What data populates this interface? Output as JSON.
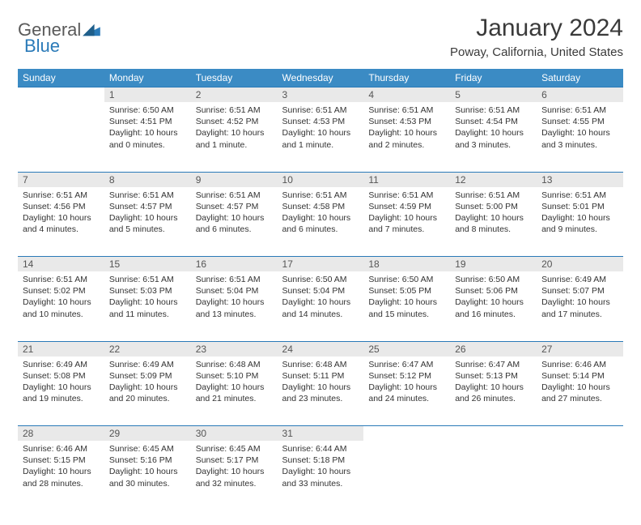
{
  "logo": {
    "general": "General",
    "blue": "Blue"
  },
  "title": "January 2024",
  "location": "Poway, California, United States",
  "colors": {
    "header_bg": "#3b8bc4",
    "header_text": "#ffffff",
    "daynum_bg": "#e9e9e9",
    "border": "#2a7ab8",
    "logo_gray": "#5a5a5a",
    "logo_blue": "#2a7ab8"
  },
  "weekdays": [
    "Sunday",
    "Monday",
    "Tuesday",
    "Wednesday",
    "Thursday",
    "Friday",
    "Saturday"
  ],
  "weeks": [
    [
      null,
      {
        "n": "1",
        "sr": "6:50 AM",
        "ss": "4:51 PM",
        "dl": "10 hours and 0 minutes."
      },
      {
        "n": "2",
        "sr": "6:51 AM",
        "ss": "4:52 PM",
        "dl": "10 hours and 1 minute."
      },
      {
        "n": "3",
        "sr": "6:51 AM",
        "ss": "4:53 PM",
        "dl": "10 hours and 1 minute."
      },
      {
        "n": "4",
        "sr": "6:51 AM",
        "ss": "4:53 PM",
        "dl": "10 hours and 2 minutes."
      },
      {
        "n": "5",
        "sr": "6:51 AM",
        "ss": "4:54 PM",
        "dl": "10 hours and 3 minutes."
      },
      {
        "n": "6",
        "sr": "6:51 AM",
        "ss": "4:55 PM",
        "dl": "10 hours and 3 minutes."
      }
    ],
    [
      {
        "n": "7",
        "sr": "6:51 AM",
        "ss": "4:56 PM",
        "dl": "10 hours and 4 minutes."
      },
      {
        "n": "8",
        "sr": "6:51 AM",
        "ss": "4:57 PM",
        "dl": "10 hours and 5 minutes."
      },
      {
        "n": "9",
        "sr": "6:51 AM",
        "ss": "4:57 PM",
        "dl": "10 hours and 6 minutes."
      },
      {
        "n": "10",
        "sr": "6:51 AM",
        "ss": "4:58 PM",
        "dl": "10 hours and 6 minutes."
      },
      {
        "n": "11",
        "sr": "6:51 AM",
        "ss": "4:59 PM",
        "dl": "10 hours and 7 minutes."
      },
      {
        "n": "12",
        "sr": "6:51 AM",
        "ss": "5:00 PM",
        "dl": "10 hours and 8 minutes."
      },
      {
        "n": "13",
        "sr": "6:51 AM",
        "ss": "5:01 PM",
        "dl": "10 hours and 9 minutes."
      }
    ],
    [
      {
        "n": "14",
        "sr": "6:51 AM",
        "ss": "5:02 PM",
        "dl": "10 hours and 10 minutes."
      },
      {
        "n": "15",
        "sr": "6:51 AM",
        "ss": "5:03 PM",
        "dl": "10 hours and 11 minutes."
      },
      {
        "n": "16",
        "sr": "6:51 AM",
        "ss": "5:04 PM",
        "dl": "10 hours and 13 minutes."
      },
      {
        "n": "17",
        "sr": "6:50 AM",
        "ss": "5:04 PM",
        "dl": "10 hours and 14 minutes."
      },
      {
        "n": "18",
        "sr": "6:50 AM",
        "ss": "5:05 PM",
        "dl": "10 hours and 15 minutes."
      },
      {
        "n": "19",
        "sr": "6:50 AM",
        "ss": "5:06 PM",
        "dl": "10 hours and 16 minutes."
      },
      {
        "n": "20",
        "sr": "6:49 AM",
        "ss": "5:07 PM",
        "dl": "10 hours and 17 minutes."
      }
    ],
    [
      {
        "n": "21",
        "sr": "6:49 AM",
        "ss": "5:08 PM",
        "dl": "10 hours and 19 minutes."
      },
      {
        "n": "22",
        "sr": "6:49 AM",
        "ss": "5:09 PM",
        "dl": "10 hours and 20 minutes."
      },
      {
        "n": "23",
        "sr": "6:48 AM",
        "ss": "5:10 PM",
        "dl": "10 hours and 21 minutes."
      },
      {
        "n": "24",
        "sr": "6:48 AM",
        "ss": "5:11 PM",
        "dl": "10 hours and 23 minutes."
      },
      {
        "n": "25",
        "sr": "6:47 AM",
        "ss": "5:12 PM",
        "dl": "10 hours and 24 minutes."
      },
      {
        "n": "26",
        "sr": "6:47 AM",
        "ss": "5:13 PM",
        "dl": "10 hours and 26 minutes."
      },
      {
        "n": "27",
        "sr": "6:46 AM",
        "ss": "5:14 PM",
        "dl": "10 hours and 27 minutes."
      }
    ],
    [
      {
        "n": "28",
        "sr": "6:46 AM",
        "ss": "5:15 PM",
        "dl": "10 hours and 28 minutes."
      },
      {
        "n": "29",
        "sr": "6:45 AM",
        "ss": "5:16 PM",
        "dl": "10 hours and 30 minutes."
      },
      {
        "n": "30",
        "sr": "6:45 AM",
        "ss": "5:17 PM",
        "dl": "10 hours and 32 minutes."
      },
      {
        "n": "31",
        "sr": "6:44 AM",
        "ss": "5:18 PM",
        "dl": "10 hours and 33 minutes."
      },
      null,
      null,
      null
    ]
  ],
  "labels": {
    "sunrise": "Sunrise:",
    "sunset": "Sunset:",
    "daylight": "Daylight:"
  }
}
